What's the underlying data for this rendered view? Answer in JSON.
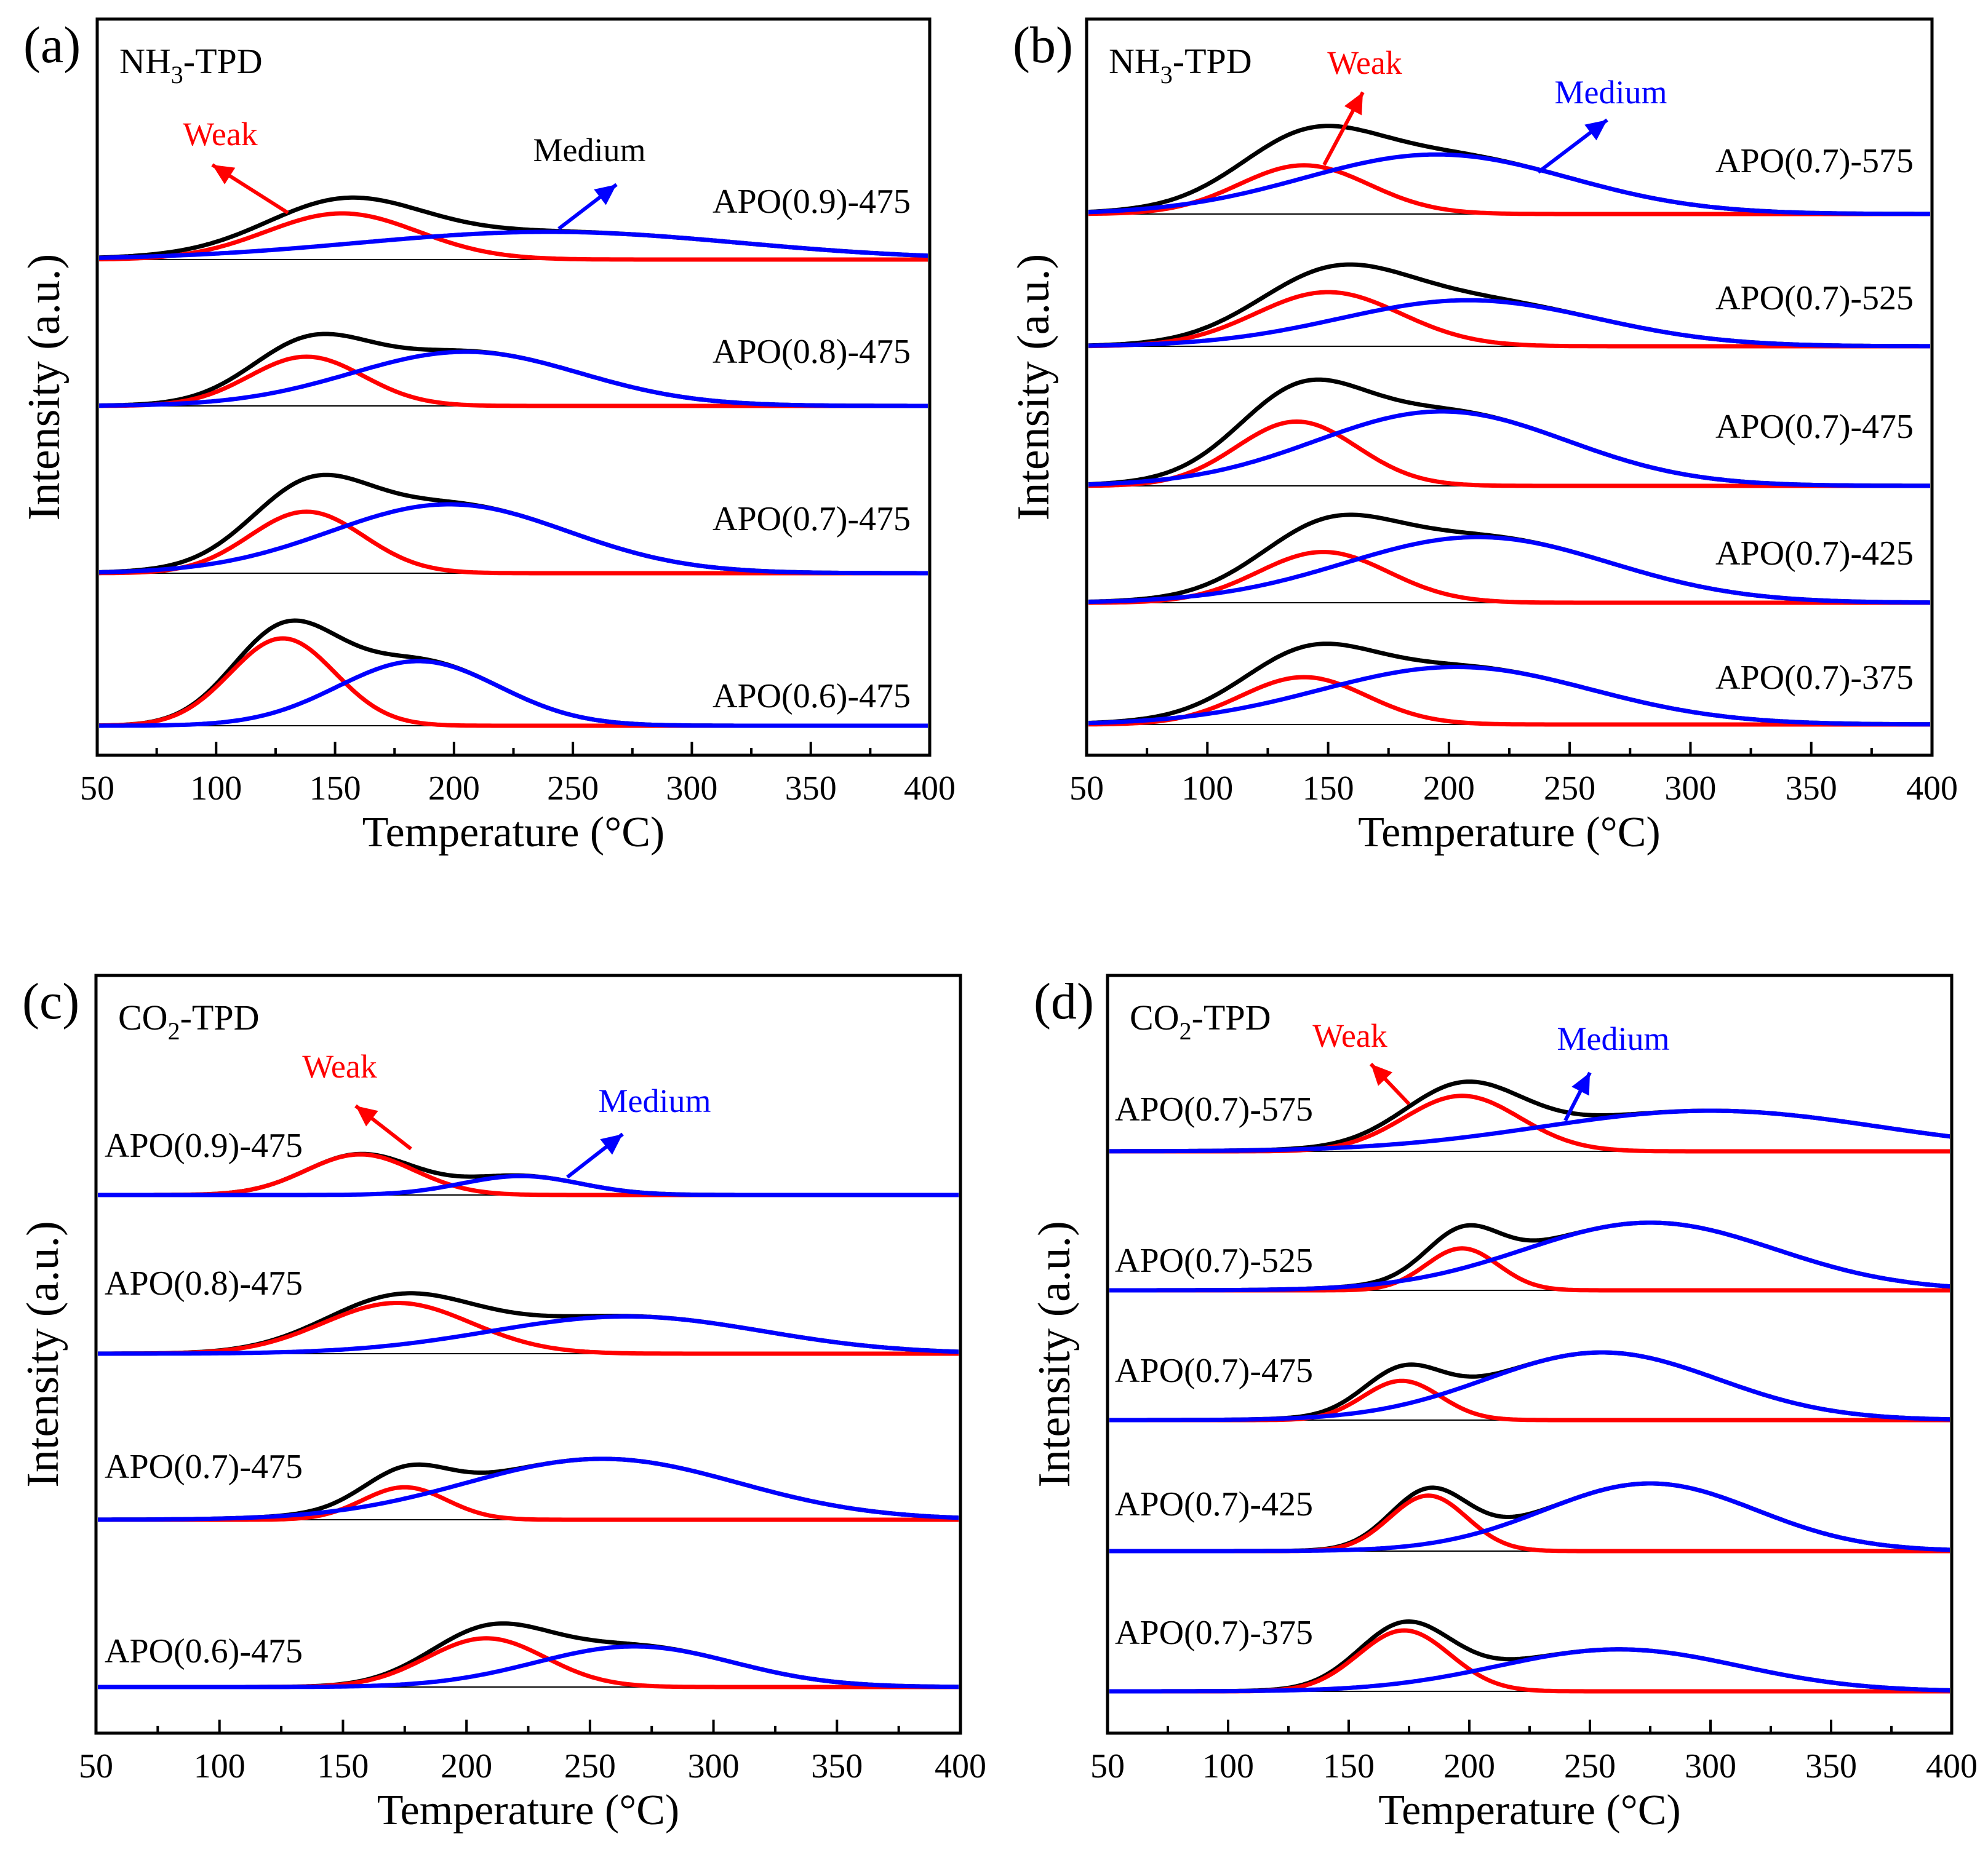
{
  "colors": {
    "total": "#000000",
    "weak": "#ff0000",
    "medium": "#0000ff",
    "baseline": "#000000",
    "frame": "#000000"
  },
  "chart_data": [
    {
      "type": "line",
      "panel_label": "(a)",
      "title": "NH3-TPD",
      "title_main": "NH",
      "title_sub": "3",
      "title_rest": "-TPD",
      "xlabel": "Temperature (°C)",
      "ylabel": "Intensity (a.u.)",
      "xlim": [
        50,
        400
      ],
      "xticks": [
        "50",
        "100",
        "150",
        "200",
        "250",
        "300",
        "350",
        "400"
      ],
      "annotations": {
        "weak": "Weak",
        "medium": "Medium"
      },
      "series": [
        {
          "name": "APO(0.9)-475",
          "weak": {
            "center": 153,
            "width": 32,
            "amp": 0.75
          },
          "medium": {
            "center": 240,
            "width": 80,
            "amp": 0.45
          }
        },
        {
          "name": "APO(0.8)-475",
          "weak": {
            "center": 138,
            "width": 24,
            "amp": 0.8
          },
          "medium": {
            "center": 205,
            "width": 48,
            "amp": 0.88
          }
        },
        {
          "name": "APO(0.7)-475",
          "weak": {
            "center": 138,
            "width": 24,
            "amp": 1.0
          },
          "medium": {
            "center": 198,
            "width": 50,
            "amp": 1.12
          }
        },
        {
          "name": "APO(0.6)-475",
          "weak": {
            "center": 128,
            "width": 22,
            "amp": 1.42
          },
          "medium": {
            "center": 185,
            "width": 34,
            "amp": 1.05
          }
        }
      ]
    },
    {
      "type": "line",
      "panel_label": "(b)",
      "title": "NH3-TPD",
      "title_main": "NH",
      "title_sub": "3",
      "title_rest": "-TPD",
      "xlabel": "Temperature (°C)",
      "ylabel": "Intensity (a.u.)",
      "xlim": [
        50,
        400
      ],
      "xticks": [
        "50",
        "100",
        "150",
        "200",
        "250",
        "300",
        "350",
        "400"
      ],
      "annotations": {
        "weak": "Weak",
        "medium": "Medium"
      },
      "series": [
        {
          "name": "APO(0.7)-575",
          "weak": {
            "center": 140,
            "width": 27,
            "amp": 0.72
          },
          "medium": {
            "center": 195,
            "width": 55,
            "amp": 0.88
          }
        },
        {
          "name": "APO(0.7)-525",
          "weak": {
            "center": 150,
            "width": 30,
            "amp": 0.8
          },
          "medium": {
            "center": 208,
            "width": 53,
            "amp": 0.68
          }
        },
        {
          "name": "APO(0.7)-475",
          "weak": {
            "center": 137,
            "width": 25,
            "amp": 0.95
          },
          "medium": {
            "center": 197,
            "width": 52,
            "amp": 1.1
          }
        },
        {
          "name": "APO(0.7)-425",
          "weak": {
            "center": 148,
            "width": 27,
            "amp": 0.75
          },
          "medium": {
            "center": 212,
            "width": 55,
            "amp": 0.97
          }
        },
        {
          "name": "APO(0.7)-375",
          "weak": {
            "center": 140,
            "width": 26,
            "amp": 0.7
          },
          "medium": {
            "center": 203,
            "width": 56,
            "amp": 0.85
          }
        }
      ]
    },
    {
      "type": "line",
      "panel_label": "(c)",
      "title": "CO2-TPD",
      "title_main": "CO",
      "title_sub": "2",
      "title_rest": "-TPD",
      "xlabel": "Temperature (°C)",
      "ylabel": "Intensity (a.u.)",
      "xlim": [
        50,
        400
      ],
      "xticks": [
        "50",
        "100",
        "150",
        "200",
        "250",
        "300",
        "350",
        "400"
      ],
      "annotations": {
        "weak": "Weak",
        "medium": "Medium"
      },
      "series": [
        {
          "name": "APO(0.9)-475",
          "weak": {
            "center": 157,
            "width": 22,
            "amp": 0.6
          },
          "medium": {
            "center": 222,
            "width": 24,
            "amp": 0.28
          }
        },
        {
          "name": "APO(0.8)-475",
          "weak": {
            "center": 172,
            "width": 30,
            "amp": 0.75
          },
          "medium": {
            "center": 265,
            "width": 55,
            "amp": 0.55
          }
        },
        {
          "name": "APO(0.7)-475",
          "weak": {
            "center": 175,
            "width": 17,
            "amp": 0.48
          },
          "medium": {
            "center": 255,
            "width": 55,
            "amp": 0.9
          }
        },
        {
          "name": "APO(0.6)-475",
          "weak": {
            "center": 208,
            "width": 24,
            "amp": 0.72
          },
          "medium": {
            "center": 268,
            "width": 40,
            "amp": 0.6
          }
        }
      ]
    },
    {
      "type": "line",
      "panel_label": "(d)",
      "title": "CO2-TPD",
      "title_main": "CO",
      "title_sub": "2",
      "title_rest": "-TPD",
      "xlabel": "Temperature (°C)",
      "ylabel": "Intensity (a.u.)",
      "xlim": [
        50,
        400
      ],
      "xticks": [
        "50",
        "100",
        "150",
        "200",
        "250",
        "300",
        "350",
        "400"
      ],
      "annotations": {
        "weak": "Weak",
        "medium": "Medium"
      },
      "series": [
        {
          "name": "APO(0.7)-575",
          "weak": {
            "center": 197,
            "width": 24,
            "amp": 0.82
          },
          "medium": {
            "center": 300,
            "width": 70,
            "amp": 0.6
          }
        },
        {
          "name": "APO(0.7)-525",
          "weak": {
            "center": 197,
            "width": 15,
            "amp": 0.62
          },
          "medium": {
            "center": 275,
            "width": 52,
            "amp": 1.0
          }
        },
        {
          "name": "APO(0.7)-475",
          "weak": {
            "center": 172,
            "width": 16,
            "amp": 0.58
          },
          "medium": {
            "center": 255,
            "width": 48,
            "amp": 1.0
          }
        },
        {
          "name": "APO(0.7)-425",
          "weak": {
            "center": 183,
            "width": 16,
            "amp": 0.82
          },
          "medium": {
            "center": 275,
            "width": 44,
            "amp": 1.0
          }
        },
        {
          "name": "APO(0.7)-375",
          "weak": {
            "center": 173,
            "width": 19,
            "amp": 0.9
          },
          "medium": {
            "center": 262,
            "width": 50,
            "amp": 0.62
          }
        }
      ]
    }
  ]
}
